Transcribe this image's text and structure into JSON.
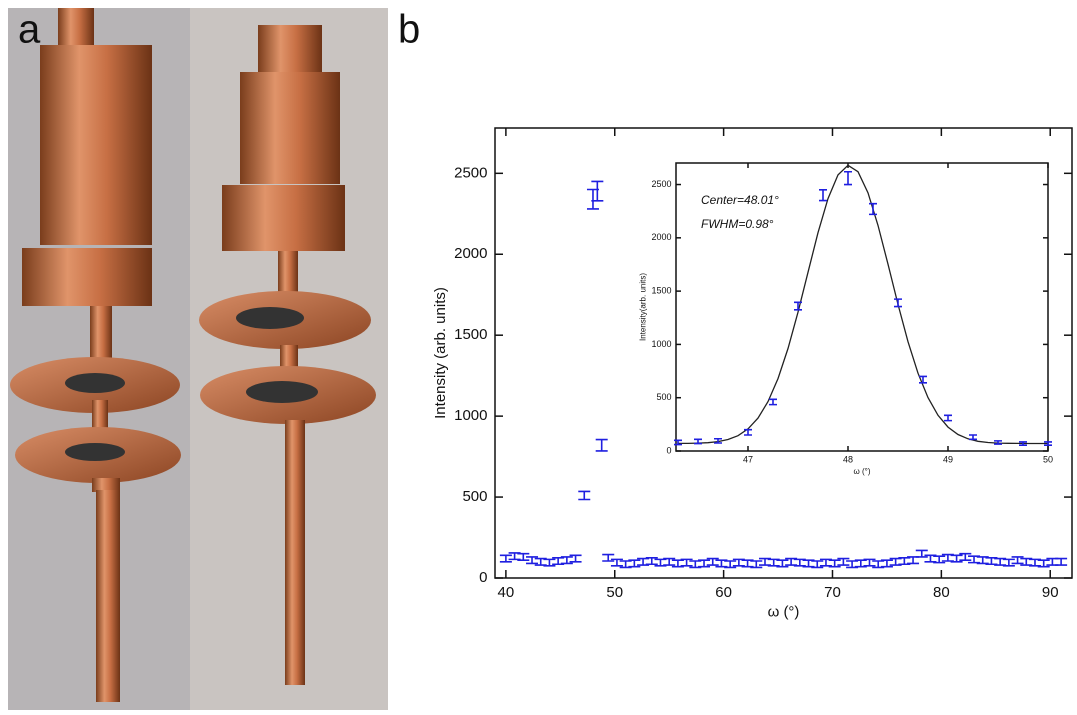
{
  "panel_labels": [
    "a",
    "b"
  ],
  "chart_data": [
    {
      "type": "errorbar",
      "xlabel": "ω (°)",
      "ylabel": "Intensity (arb. units)",
      "color": "#1f1fe0",
      "xlim": [
        39,
        92
      ],
      "xticks": [
        40,
        50,
        60,
        70,
        80,
        90
      ],
      "ylim": [
        0,
        2780
      ],
      "yticks": [
        0,
        500,
        1000,
        1500,
        2000,
        2500
      ],
      "x": [
        40,
        40.8,
        41.6,
        42.4,
        43.2,
        44,
        44.8,
        45.6,
        46.4,
        47.2,
        48,
        48.4,
        48.8,
        49.4,
        50.2,
        51,
        51.8,
        52.6,
        53.4,
        54.2,
        55,
        55.8,
        56.6,
        57.4,
        58.2,
        59,
        59.8,
        60.6,
        61.4,
        62.2,
        63,
        63.8,
        64.6,
        65.4,
        66.2,
        67,
        67.8,
        68.6,
        69.4,
        70.2,
        71,
        71.8,
        72.6,
        73.4,
        74.2,
        75,
        75.8,
        76.6,
        77.4,
        78.2,
        79,
        79.8,
        80.6,
        81.4,
        82.2,
        83,
        83.8,
        84.6,
        85.4,
        86.2,
        87,
        87.8,
        88.6,
        89.4,
        90.2,
        91
      ],
      "values": [
        120,
        135,
        130,
        110,
        100,
        95,
        105,
        110,
        120,
        510,
        2340,
        2390,
        820,
        125,
        95,
        85,
        90,
        100,
        105,
        95,
        100,
        90,
        95,
        85,
        90,
        100,
        90,
        85,
        95,
        90,
        85,
        100,
        95,
        90,
        100,
        95,
        90,
        85,
        95,
        90,
        100,
        85,
        90,
        95,
        85,
        90,
        100,
        105,
        110,
        150,
        120,
        115,
        125,
        120,
        130,
        115,
        110,
        105,
        100,
        95,
        110,
        100,
        95,
        90,
        100,
        100
      ],
      "errors": [
        20,
        20,
        20,
        20,
        20,
        20,
        20,
        20,
        20,
        25,
        60,
        60,
        35,
        20,
        20,
        20,
        20,
        20,
        20,
        20,
        20,
        20,
        20,
        20,
        20,
        20,
        20,
        20,
        20,
        20,
        20,
        20,
        20,
        20,
        20,
        20,
        20,
        20,
        20,
        20,
        20,
        20,
        20,
        20,
        20,
        20,
        20,
        20,
        20,
        20,
        20,
        20,
        20,
        20,
        20,
        20,
        20,
        20,
        20,
        20,
        20,
        20,
        20,
        20,
        20,
        20
      ]
    },
    {
      "type": "errorbar",
      "xlabel": "ω (°)",
      "ylabel": "Intensity(arb. units)",
      "color": "#1f1fe0",
      "annotations": [
        "Center=48.01°",
        "FWHM=0.98°"
      ],
      "xlim": [
        46.28,
        50
      ],
      "xticks": [
        47,
        48,
        49,
        50
      ],
      "ylim": [
        0,
        2702
      ],
      "yticks": [
        0,
        500,
        1000,
        1500,
        2000,
        2500
      ],
      "x": [
        46.3,
        46.5,
        46.7,
        47,
        47.25,
        47.5,
        47.75,
        48,
        48.25,
        48.5,
        48.75,
        49,
        49.25,
        49.5,
        49.75,
        50
      ],
      "values": [
        80,
        90,
        95,
        175,
        460,
        1360,
        2400,
        2560,
        2270,
        1390,
        670,
        310,
        130,
        80,
        70,
        70
      ],
      "errors": [
        20,
        20,
        20,
        25,
        25,
        35,
        50,
        60,
        50,
        35,
        30,
        25,
        20,
        15,
        15,
        15
      ],
      "fit": {
        "color": "#222222",
        "x": [
          46.3,
          46.4,
          46.5,
          46.6,
          46.7,
          46.8,
          46.9,
          47.0,
          47.1,
          47.2,
          47.3,
          47.4,
          47.5,
          47.6,
          47.7,
          47.8,
          47.9,
          48.0,
          48.1,
          48.2,
          48.3,
          48.4,
          48.5,
          48.6,
          48.7,
          48.8,
          48.9,
          49.0,
          49.1,
          49.2,
          49.3,
          49.4,
          49.5,
          49.6,
          49.7,
          49.8,
          49.9,
          50.0
        ],
        "values": [
          71,
          71,
          74,
          78,
          88,
          108,
          144,
          207,
          309,
          463,
          679,
          962,
          1302,
          1677,
          2048,
          2368,
          2590,
          2680,
          2620,
          2422,
          2117,
          1753,
          1375,
          1025,
          730,
          501,
          335,
          224,
          155,
          114,
          91,
          80,
          74,
          72,
          71,
          70,
          70,
          70
        ]
      }
    }
  ]
}
